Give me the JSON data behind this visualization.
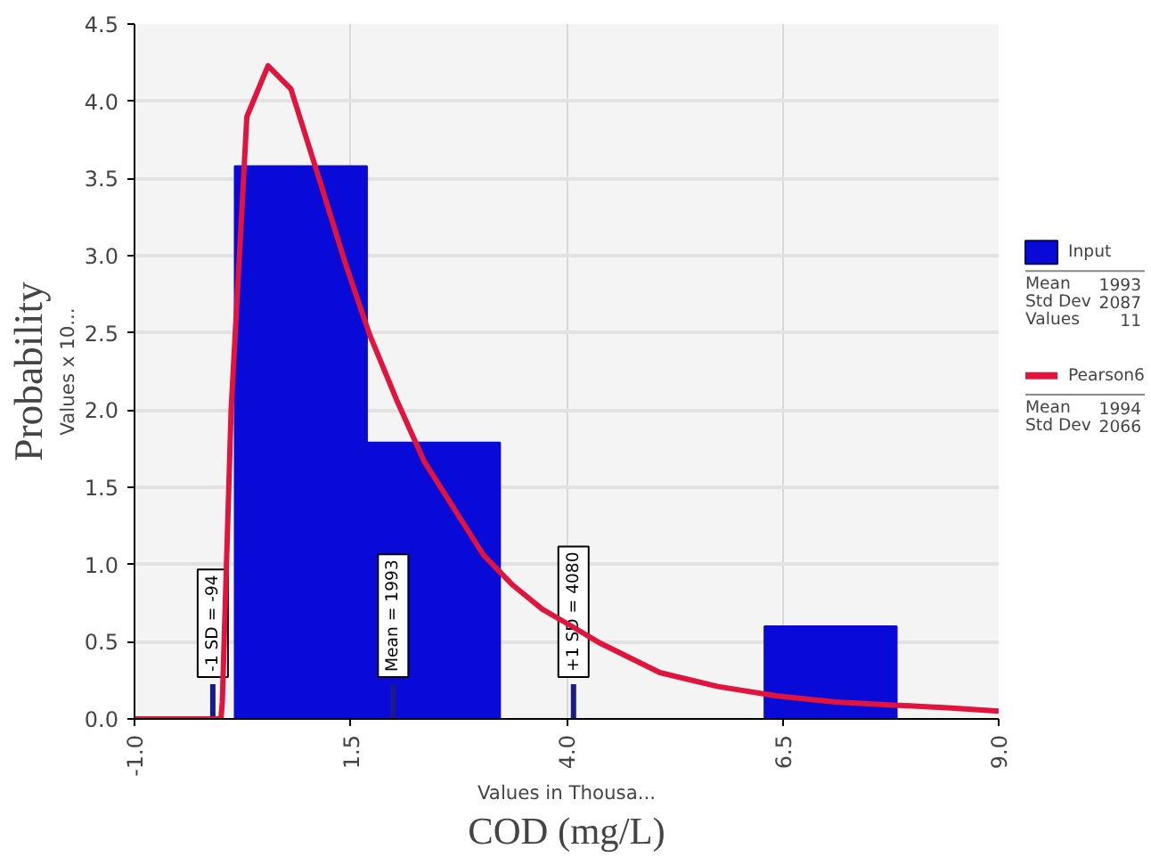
{
  "chart_data": {
    "type": "histogram",
    "xlabel": "COD (mg/L)",
    "ylabel": "Probability",
    "bins": [
      0.16,
      1.69,
      3.23,
      4.76,
      6.29,
      7.82
    ],
    "series": [
      {
        "name": "Input",
        "color": "#0a0ad8",
        "values": [
          3.58,
          1.79,
          0,
          0,
          0.6
        ]
      },
      {
        "name": "Pearson6",
        "type": "line",
        "color": "#e0143c",
        "line_style": "solid",
        "x": [
          -1.0,
          0.0,
          0.016,
          0.118,
          0.3,
          0.545,
          0.81,
          1.13,
          1.44,
          1.72,
          2.03,
          2.35,
          2.7,
          3.04,
          3.37,
          3.72,
          4.06,
          4.39,
          5.08,
          5.75,
          6.42,
          7.11,
          7.78,
          8.45,
          9.0
        ],
        "values": [
          0,
          0,
          0.11,
          2.0,
          3.9,
          4.23,
          4.08,
          3.51,
          2.95,
          2.49,
          2.07,
          1.67,
          1.36,
          1.06,
          0.87,
          0.71,
          0.6,
          0.49,
          0.3,
          0.21,
          0.15,
          0.11,
          0.09,
          0.07,
          0.05
        ]
      }
    ],
    "xlim": [
      -1.0,
      9.0
    ],
    "xticks": [
      {
        "value": -1,
        "label": "-1.0"
      },
      1.5,
      {
        "value": 4,
        "label": "4.0"
      },
      6.5,
      {
        "value": 9,
        "label": "9.0"
      }
    ],
    "ylim": [
      0,
      4.5
    ],
    "yticks": [
      {
        "value": 0,
        "label": "0.0"
      },
      0.5,
      {
        "value": 1,
        "label": "1.0"
      },
      1.5,
      {
        "value": 2,
        "label": "2.0"
      },
      2.5,
      {
        "value": 3,
        "label": "3.0"
      },
      3.5,
      {
        "value": 4,
        "label": "4.0"
      },
      4.5
    ],
    "ref_lines": [
      {
        "axis": "x",
        "value": -0.094,
        "label": "-1 SD = -94",
        "color": "#1a1a8c"
      },
      {
        "axis": "x",
        "value": 1.993,
        "label": "Mean = 1993",
        "color": "#1a1a8c"
      },
      {
        "axis": "x",
        "value": 4.08,
        "label": "+1 SD = 4080",
        "color": "#1a1a8c"
      }
    ],
    "annotations": [
      "Values in Thousa...",
      "Values x 10...",
      "Mean 1993",
      "Std Dev 2087",
      "Values 11",
      "Mean 1994",
      "Std Dev 2066"
    ],
    "grid": true,
    "legend": "right"
  }
}
